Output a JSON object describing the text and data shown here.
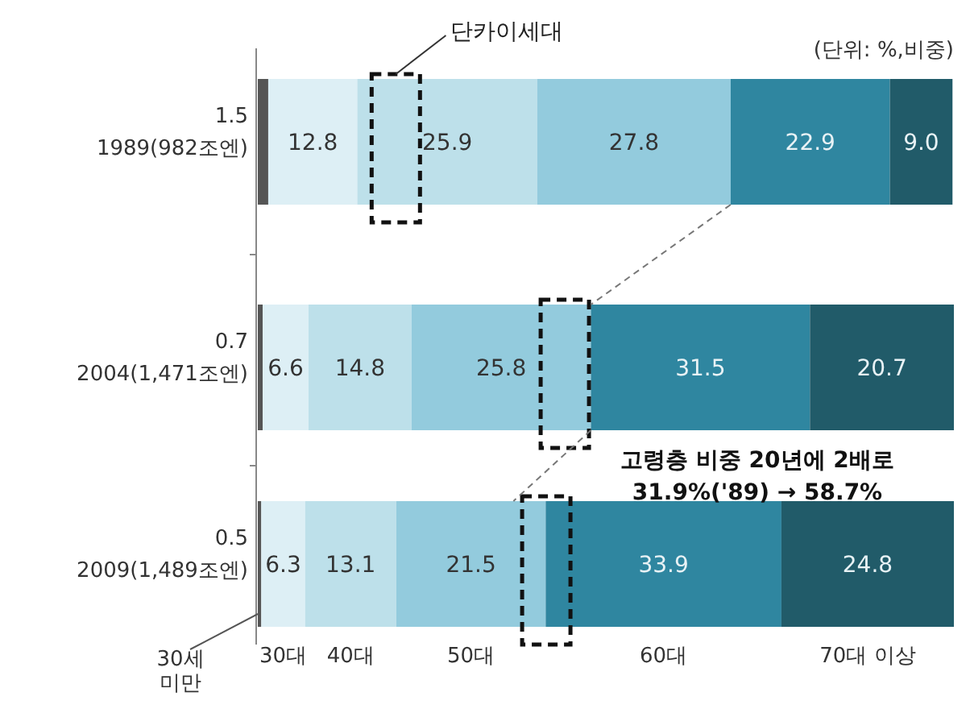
{
  "chart_data": {
    "type": "bar",
    "orientation": "horizontal",
    "stacked": true,
    "categories": [
      "1989(982조엔)",
      "2004(1,471조엔)",
      "2009(1,489조엔)"
    ],
    "series": [
      {
        "name": "30세 미만",
        "color": "#555555",
        "values": [
          1.5,
          0.7,
          0.5
        ]
      },
      {
        "name": "30대",
        "color": "#ddeff5",
        "values": [
          12.8,
          6.6,
          6.3
        ]
      },
      {
        "name": "40대",
        "color": "#bde0ea",
        "values": [
          25.9,
          14.8,
          13.1
        ]
      },
      {
        "name": "50대",
        "color": "#93cbdd",
        "values": [
          27.8,
          25.8,
          21.5
        ]
      },
      {
        "name": "60대",
        "color": "#2f86a0",
        "values": [
          22.9,
          31.5,
          33.9
        ]
      },
      {
        "name": "70대 이상",
        "color": "#215b69",
        "values": [
          9.0,
          20.7,
          24.8
        ],
        "value_labels": [
          "9.0",
          "20.7",
          "24.8"
        ]
      }
    ],
    "data_labels": true,
    "annotations": [
      "단카이세대",
      "(단위: %,비중)",
      "고령층 비중 20년에 2배로",
      "31.9%('89) → 58.7%"
    ]
  }
}
